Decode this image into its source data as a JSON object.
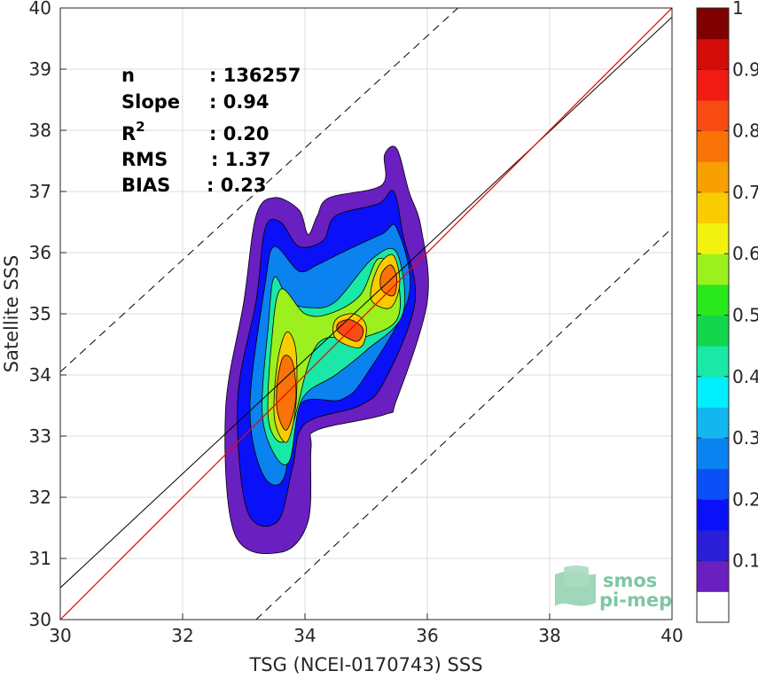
{
  "chart_data": {
    "type": "heatmap",
    "subtype": "filled density contour scatter comparison",
    "xlabel": "TSG (NCEI-0170743) SSS",
    "ylabel": "Satellite SSS",
    "xlim": [
      30,
      40
    ],
    "ylim": [
      30,
      40
    ],
    "xticks": [
      "30",
      "32",
      "34",
      "36",
      "38",
      "40"
    ],
    "yticks": [
      "30",
      "31",
      "32",
      "33",
      "34",
      "35",
      "36",
      "37",
      "38",
      "39",
      "40"
    ],
    "grid": true,
    "stats": [
      {
        "label": "n",
        "sep": ": ",
        "value": "136257"
      },
      {
        "label": "Slope",
        "sep": ": ",
        "value": "0.94"
      },
      {
        "label": "R",
        "sup": "2",
        "sep": ": ",
        "value": "0.20"
      },
      {
        "label": "RMS",
        "sep": ": ",
        "value": "1.37"
      },
      {
        "label": "BIAS",
        "sep": ": ",
        "value": "0.23"
      }
    ],
    "lines": {
      "one_to_one": {
        "color": "#ff0000",
        "points": [
          [
            30,
            30
          ],
          [
            40,
            40
          ]
        ]
      },
      "fit": {
        "color": "#000000",
        "slope": 0.94,
        "points": [
          [
            30,
            30.52
          ],
          [
            40,
            39.85
          ]
        ]
      },
      "upper_bound": {
        "style": "dashed",
        "points": [
          [
            30,
            34.05
          ],
          [
            36.5,
            40
          ]
        ]
      },
      "lower_bound": {
        "style": "dashed",
        "points": [
          [
            33.2,
            30
          ],
          [
            40,
            36.4
          ]
        ]
      }
    },
    "colorbar": {
      "range": [
        0,
        1
      ],
      "ticks": [
        "0.1",
        "0.2",
        "0.3",
        "0.4",
        "0.5",
        "0.6",
        "0.7",
        "0.8",
        "0.9",
        "1"
      ],
      "bottom_color": "#ffffff",
      "colors": [
        "#6a1fc0",
        "#2a1fd6",
        "#0a11f8",
        "#0b4ff6",
        "#0a82ef",
        "#13b6ef",
        "#00efff",
        "#19e8a6",
        "#13d64e",
        "#29e81c",
        "#9cf01d",
        "#f2f211",
        "#f9cc01",
        "#f8a002",
        "#f87308",
        "#f84a13",
        "#f01b13",
        "#d10c09",
        "#7f0000"
      ]
    },
    "density_levels": [
      {
        "level": 0.05,
        "polygon": [
          [
            32.7,
            33.4
          ],
          [
            32.85,
            31.4
          ],
          [
            33.6,
            31.1
          ],
          [
            34.05,
            31.6
          ],
          [
            34.1,
            32.8
          ],
          [
            34.2,
            33.1
          ],
          [
            35.3,
            33.35
          ],
          [
            35.5,
            33.6
          ],
          [
            36.0,
            35.2
          ],
          [
            35.9,
            36.4
          ],
          [
            35.7,
            37.0
          ],
          [
            35.5,
            37.7
          ],
          [
            35.3,
            37.6
          ],
          [
            35.25,
            37.1
          ],
          [
            34.4,
            36.9
          ],
          [
            34.2,
            36.6
          ],
          [
            34.05,
            36.3
          ],
          [
            33.9,
            36.7
          ],
          [
            33.5,
            36.9
          ],
          [
            33.2,
            36.6
          ],
          [
            33.0,
            35.2
          ]
        ]
      },
      {
        "level": 0.15,
        "polygon": [
          [
            32.9,
            33.6
          ],
          [
            33.05,
            31.8
          ],
          [
            33.55,
            31.6
          ],
          [
            33.8,
            32.5
          ],
          [
            34.0,
            33.2
          ],
          [
            34.9,
            33.5
          ],
          [
            35.3,
            33.9
          ],
          [
            35.8,
            35.2
          ],
          [
            35.6,
            36.3
          ],
          [
            35.45,
            37.0
          ],
          [
            35.2,
            36.8
          ],
          [
            34.5,
            36.6
          ],
          [
            34.3,
            36.2
          ],
          [
            33.9,
            36.1
          ],
          [
            33.6,
            36.5
          ],
          [
            33.35,
            36.4
          ],
          [
            33.2,
            35.2
          ]
        ]
      },
      {
        "level": 0.25,
        "polygon": [
          [
            33.1,
            33.5
          ],
          [
            33.3,
            32.4
          ],
          [
            33.65,
            32.3
          ],
          [
            33.9,
            33.5
          ],
          [
            34.6,
            33.6
          ],
          [
            35.0,
            34.0
          ],
          [
            35.7,
            35.3
          ],
          [
            35.5,
            36.4
          ],
          [
            35.25,
            36.3
          ],
          [
            34.6,
            36.0
          ],
          [
            34.2,
            35.8
          ],
          [
            33.9,
            35.7
          ],
          [
            33.5,
            36.1
          ],
          [
            33.35,
            35.5
          ]
        ]
      },
      {
        "level": 0.4,
        "polygon": [
          [
            33.3,
            33.4
          ],
          [
            33.5,
            32.7
          ],
          [
            33.75,
            32.6
          ],
          [
            33.95,
            33.6
          ],
          [
            34.5,
            34.0
          ],
          [
            35.0,
            34.4
          ],
          [
            35.6,
            35.0
          ],
          [
            35.5,
            36.0
          ],
          [
            35.1,
            35.9
          ],
          [
            34.5,
            35.2
          ],
          [
            34.1,
            35.1
          ],
          [
            33.75,
            35.2
          ],
          [
            33.5,
            35.6
          ],
          [
            33.4,
            34.8
          ]
        ]
      },
      {
        "level": 0.55,
        "polygon": [
          [
            33.4,
            33.3
          ],
          [
            33.6,
            32.9
          ],
          [
            33.8,
            33.2
          ],
          [
            34.2,
            34.5
          ],
          [
            34.9,
            34.6
          ],
          [
            35.5,
            34.9
          ],
          [
            35.5,
            35.6
          ],
          [
            35.2,
            35.9
          ],
          [
            34.9,
            35.3
          ],
          [
            34.4,
            35.0
          ],
          [
            34.0,
            35.0
          ],
          [
            33.6,
            35.4
          ],
          [
            33.45,
            34.5
          ]
        ]
      },
      {
        "level": 0.65,
        "polygon": [
          [
            33.5,
            33.3
          ],
          [
            33.7,
            32.9
          ],
          [
            33.85,
            33.5
          ],
          [
            33.85,
            34.4
          ],
          [
            33.7,
            34.7
          ],
          [
            33.55,
            34.2
          ]
        ]
      },
      {
        "level": 0.75,
        "polygon": [
          [
            33.55,
            33.4
          ],
          [
            33.7,
            33.1
          ],
          [
            33.85,
            33.6
          ],
          [
            33.8,
            34.2
          ],
          [
            33.65,
            34.3
          ],
          [
            33.55,
            33.9
          ]
        ]
      },
      {
        "level": 0.65,
        "polygon": [
          [
            34.5,
            34.6
          ],
          [
            34.9,
            34.45
          ],
          [
            35.0,
            34.8
          ],
          [
            34.8,
            35.0
          ],
          [
            34.5,
            34.9
          ]
        ]
      },
      {
        "level": 0.8,
        "polygon": [
          [
            34.55,
            34.7
          ],
          [
            34.85,
            34.55
          ],
          [
            34.95,
            34.75
          ],
          [
            34.75,
            34.9
          ],
          [
            34.55,
            34.85
          ]
        ]
      },
      {
        "level": 0.65,
        "polygon": [
          [
            35.1,
            35.2
          ],
          [
            35.4,
            35.1
          ],
          [
            35.55,
            35.5
          ],
          [
            35.45,
            35.95
          ],
          [
            35.25,
            35.85
          ],
          [
            35.1,
            35.5
          ]
        ]
      },
      {
        "level": 0.75,
        "polygon": [
          [
            35.25,
            35.4
          ],
          [
            35.45,
            35.3
          ],
          [
            35.5,
            35.6
          ],
          [
            35.4,
            35.8
          ],
          [
            35.25,
            35.65
          ]
        ]
      }
    ]
  },
  "logo": {
    "line1": "smos",
    "line2": "pi-mep"
  }
}
